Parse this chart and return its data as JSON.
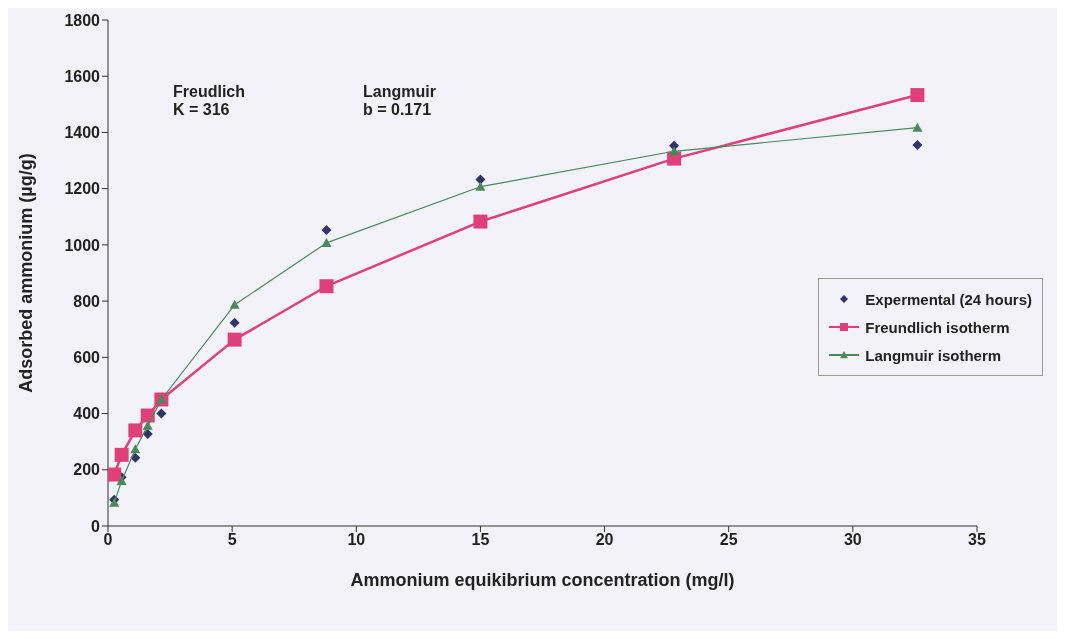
{
  "chart_data": {
    "type": "line",
    "xlabel": "Ammonium equikibrium concentration (mg/l)",
    "ylabel": "Adsorbed ammonium (µg/g)",
    "xlim": [
      0,
      35
    ],
    "xticks": [
      0,
      5,
      10,
      15,
      20,
      25,
      30,
      35
    ],
    "ylim": [
      0,
      1800
    ],
    "yticks": [
      0,
      200,
      400,
      600,
      800,
      1000,
      1200,
      1400,
      1600,
      1800
    ],
    "grid": false,
    "legend": "right",
    "x": [
      0.25,
      0.55,
      1.1,
      1.6,
      2.15,
      5.1,
      8.8,
      15.0,
      22.8,
      32.6
    ],
    "series": [
      {
        "name": "Expermental (24 hours)",
        "type": "scatter",
        "marker": "diamond",
        "color": "#333366",
        "values": [
          93,
          173,
          243,
          327,
          400,
          723,
          1053,
          1233,
          1353,
          1355
        ]
      },
      {
        "name": "Freundlich isotherm",
        "type": "line",
        "marker": "square",
        "color": "#e0407a",
        "values": [
          183,
          253,
          340,
          393,
          450,
          663,
          853,
          1083,
          1307,
          1533
        ]
      },
      {
        "name": "Langmuir isotherm",
        "type": "line",
        "marker": "triangle",
        "color": "#4a8a5a",
        "values": [
          83,
          160,
          273,
          357,
          450,
          787,
          1007,
          1207,
          1333,
          1417
        ]
      }
    ],
    "annotations": [
      "Freudlich\nK = 316",
      "Langmuir\nb = 0.171"
    ]
  }
}
